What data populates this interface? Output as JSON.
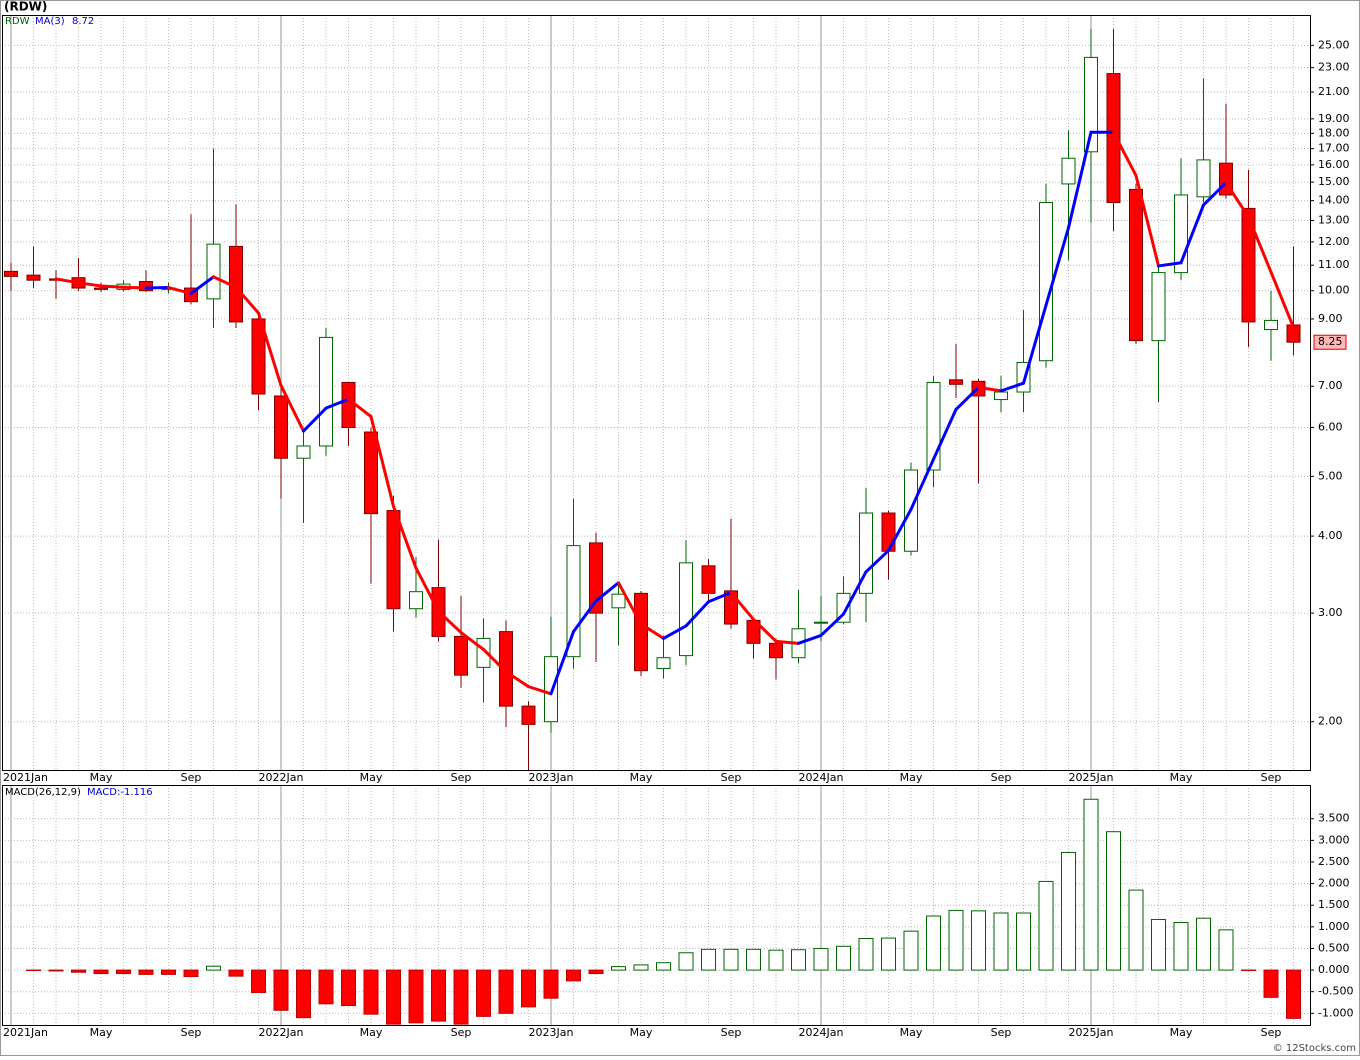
{
  "chart_data": [
    {
      "type": "candlestick",
      "title": "(RDW)",
      "symbol": "RDW",
      "log": true,
      "grid": true,
      "up_color": "#006400",
      "down_color": "#ff0000",
      "categories": [
        "2021Jan",
        null,
        null,
        null,
        "May",
        null,
        null,
        null,
        "Sep",
        null,
        null,
        null,
        "2022Jan",
        null,
        null,
        null,
        "May",
        null,
        null,
        null,
        "Sep",
        null,
        null,
        null,
        "2023Jan",
        null,
        null,
        null,
        "May",
        null,
        null,
        null,
        "Sep",
        null,
        null,
        null,
        "2024Jan",
        null,
        null,
        null,
        "May",
        null,
        null,
        null,
        "Sep",
        null,
        null,
        null,
        "2025Jan",
        null,
        null,
        null,
        "May",
        null,
        null,
        null,
        "Sep",
        null
      ],
      "open": [
        10.75,
        10.6,
        10.45,
        10.5,
        10.1,
        10.05,
        10.35,
        10.05,
        10.1,
        9.7,
        11.8,
        9.0,
        6.75,
        5.35,
        5.6,
        7.1,
        5.9,
        4.4,
        3.05,
        3.3,
        2.75,
        2.45,
        2.8,
        2.12,
        2.0,
        2.55,
        3.9,
        3.06,
        3.23,
        2.44,
        2.56,
        3.58,
        3.26,
        2.92,
        2.68,
        2.54,
        2.89,
        2.9,
        3.23,
        4.36,
        3.78,
        5.12,
        7.17,
        7.13,
        6.66,
        6.85,
        7.7,
        14.9,
        16.8,
        22.5,
        14.6,
        8.3,
        10.7,
        14.2,
        16.1,
        13.6,
        8.65,
        8.8
      ],
      "high": [
        11.1,
        11.8,
        10.8,
        11.3,
        10.3,
        10.4,
        10.8,
        10.3,
        13.3,
        17.0,
        13.8,
        9.2,
        7.1,
        5.9,
        8.7,
        7.1,
        6.0,
        4.65,
        3.7,
        3.95,
        3.2,
        2.94,
        2.92,
        2.16,
        2.96,
        4.6,
        4.05,
        3.37,
        3.26,
        2.76,
        3.94,
        3.67,
        4.27,
        2.94,
        2.73,
        3.27,
        3.2,
        3.44,
        4.79,
        4.4,
        5.26,
        7.27,
        8.2,
        7.2,
        7.27,
        9.3,
        14.9,
        18.2,
        26.6,
        26.6,
        14.9,
        11.1,
        16.4,
        22.1,
        20.1,
        15.7,
        10.0,
        11.8
      ],
      "low": [
        10.0,
        10.1,
        9.7,
        10.0,
        9.95,
        9.98,
        9.95,
        9.9,
        9.5,
        8.7,
        8.7,
        6.4,
        4.6,
        4.2,
        5.4,
        5.6,
        3.35,
        2.8,
        2.95,
        2.7,
        2.27,
        2.15,
        1.96,
        1.67,
        1.92,
        2.44,
        2.5,
        2.66,
        2.37,
        2.35,
        2.47,
        3.12,
        2.83,
        2.53,
        2.34,
        2.49,
        2.7,
        2.88,
        2.9,
        3.4,
        3.72,
        4.8,
        6.7,
        4.87,
        6.35,
        6.35,
        7.5,
        11.2,
        12.9,
        12.5,
        8.2,
        6.6,
        10.4,
        13.9,
        14.1,
        8.1,
        7.7,
        7.85
      ],
      "close": [
        10.55,
        10.4,
        10.4,
        10.1,
        10.05,
        10.25,
        10.0,
        10.1,
        9.6,
        11.9,
        8.9,
        6.8,
        5.35,
        5.6,
        8.4,
        6.0,
        4.35,
        3.05,
        3.25,
        2.75,
        2.38,
        2.73,
        2.12,
        1.98,
        2.55,
        3.86,
        3.0,
        3.22,
        2.42,
        2.54,
        3.62,
        3.23,
        2.88,
        2.68,
        2.54,
        2.83,
        2.9,
        3.23,
        4.36,
        3.78,
        5.12,
        7.1,
        7.05,
        6.75,
        6.85,
        7.65,
        13.9,
        16.4,
        23.9,
        13.9,
        8.3,
        10.7,
        14.3,
        16.3,
        14.3,
        8.9,
        8.95,
        8.25
      ],
      "ma": {
        "name": "MA(3)",
        "rise_color": "#0000ff",
        "fall_color": "#ff0000",
        "values": [
          null,
          null,
          10.45,
          10.3,
          10.18,
          10.13,
          10.1,
          10.12,
          9.9,
          10.53,
          10.13,
          9.2,
          7.02,
          5.92,
          6.45,
          6.67,
          6.25,
          4.47,
          3.55,
          3.02,
          2.79,
          2.62,
          2.41,
          2.28,
          2.22,
          2.8,
          3.14,
          3.36,
          2.88,
          2.73,
          2.86,
          3.13,
          3.24,
          2.93,
          2.7,
          2.68,
          2.76,
          2.99,
          3.5,
          3.79,
          4.42,
          5.33,
          6.42,
          6.97,
          6.88,
          7.08,
          9.47,
          12.65,
          18.07,
          18.07,
          15.37,
          10.97,
          11.1,
          13.77,
          14.97,
          13.17,
          10.72,
          8.72
        ]
      },
      "ylim": [
        1.67,
        28
      ],
      "yticks": [
        {
          "value": 2,
          "label": "2.00"
        },
        {
          "value": 3,
          "label": "3.00"
        },
        {
          "value": 4,
          "label": "4.00"
        },
        {
          "value": 5,
          "label": "5.00"
        },
        {
          "value": 6,
          "label": "6.00"
        },
        {
          "value": 7,
          "label": "7.00"
        },
        {
          "value": 9,
          "label": "9.00"
        },
        {
          "value": 10,
          "label": "10.00"
        },
        {
          "value": 11,
          "label": "11.00"
        },
        {
          "value": 12,
          "label": "12.00"
        },
        {
          "value": 13,
          "label": "13.00"
        },
        {
          "value": 14,
          "label": "14.00"
        },
        {
          "value": 15,
          "label": "15.00"
        },
        {
          "value": 16,
          "label": "16.00"
        },
        {
          "value": 17,
          "label": "17.00"
        },
        {
          "value": 18,
          "label": "18.00"
        },
        {
          "value": 19,
          "label": "19.00"
        },
        {
          "value": 21,
          "label": "21.00"
        },
        {
          "value": 23,
          "label": "23.00"
        },
        {
          "value": 25,
          "label": "25.00"
        }
      ]
    },
    {
      "type": "bar",
      "title": "MACD(26,12,9)",
      "last_label": "MACD:-1.116",
      "grid": true,
      "positive_color": "#006400",
      "negative_color": "#ff0000",
      "categories": [
        "2021Jan",
        null,
        null,
        null,
        "May",
        null,
        null,
        null,
        "Sep",
        null,
        null,
        null,
        "2022Jan",
        null,
        null,
        null,
        "May",
        null,
        null,
        null,
        "Sep",
        null,
        null,
        null,
        "2023Jan",
        null,
        null,
        null,
        "May",
        null,
        null,
        null,
        "Sep",
        null,
        null,
        null,
        "2024Jan",
        null,
        null,
        null,
        "May",
        null,
        null,
        null,
        "Sep",
        null,
        null,
        null,
        "2025Jan",
        null,
        null,
        null,
        "May",
        null,
        null,
        null,
        "Sep",
        null
      ],
      "values": [
        0,
        -0.01,
        -0.02,
        -0.05,
        -0.08,
        -0.08,
        -0.1,
        -0.1,
        -0.15,
        0.09,
        -0.14,
        -0.52,
        -0.93,
        -1.1,
        -0.78,
        -0.82,
        -1.02,
        -1.25,
        -1.22,
        -1.18,
        -1.25,
        -1.07,
        -1.0,
        -0.85,
        -0.65,
        -0.25,
        -0.08,
        0.08,
        0.12,
        0.17,
        0.4,
        0.48,
        0.48,
        0.48,
        0.46,
        0.47,
        0.5,
        0.55,
        0.73,
        0.74,
        0.9,
        1.25,
        1.38,
        1.37,
        1.32,
        1.32,
        2.05,
        2.72,
        3.95,
        3.2,
        1.85,
        1.17,
        1.1,
        1.2,
        0.93,
        -0.01,
        -0.63,
        -1.116
      ],
      "ylim": [
        -1.27,
        4.28
      ],
      "yticks": [
        {
          "value": 3.5,
          "label": "3.500"
        },
        {
          "value": 3,
          "label": "3.000"
        },
        {
          "value": 2.5,
          "label": "2.500"
        },
        {
          "value": 2,
          "label": "2.000"
        },
        {
          "value": 1.5,
          "label": "1.500"
        },
        {
          "value": 1,
          "label": "1.000"
        },
        {
          "value": 0.5,
          "label": "0.500"
        },
        {
          "value": 0,
          "label": "0.000"
        },
        {
          "value": -0.5,
          "label": "-0.500"
        },
        {
          "value": -1,
          "label": "-1.000"
        }
      ]
    }
  ],
  "footer": "© 12Stocks.com"
}
